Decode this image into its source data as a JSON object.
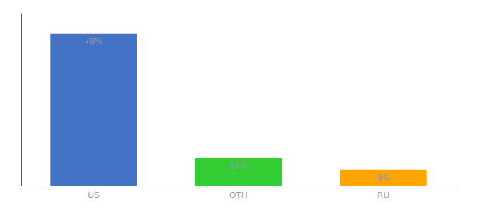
{
  "chart_data": {
    "type": "bar",
    "categories": [
      "US",
      "OTH",
      "RU"
    ],
    "values": [
      78,
      14,
      8
    ],
    "value_labels": [
      "78%",
      "14%",
      "8%"
    ],
    "colors": [
      "#4472C4",
      "#33CC33",
      "#FFA500"
    ],
    "ylim": [
      0,
      88
    ],
    "grid": false,
    "data_labels": true,
    "tick_labels": "x"
  }
}
